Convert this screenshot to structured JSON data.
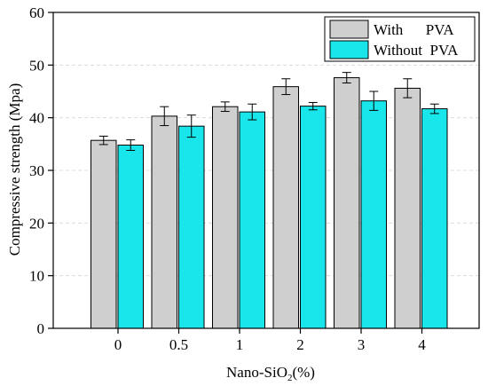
{
  "chart_data": {
    "type": "bar",
    "xlabel": "Nano-SiO",
    "xlabel_subscript": "2",
    "xlabel_suffix": "(%)",
    "ylabel": "Compressive strength (Mpa)",
    "ylim": [
      0,
      60
    ],
    "yticks": [
      0,
      10,
      20,
      30,
      40,
      50,
      60
    ],
    "categories": [
      "0",
      "0.5",
      "1",
      "2",
      "3",
      "4"
    ],
    "grid": true,
    "legend_position": "top-right",
    "series": [
      {
        "name": "With      PVA",
        "color": "#cfcfcf",
        "values": [
          35.7,
          40.3,
          42.1,
          45.9,
          47.6,
          45.6
        ],
        "errors": [
          0.8,
          1.8,
          0.9,
          1.5,
          1.0,
          1.8
        ]
      },
      {
        "name": "Without  PVA",
        "color": "#19e6ea",
        "values": [
          34.8,
          38.4,
          41.1,
          42.2,
          43.2,
          41.7
        ],
        "errors": [
          1.0,
          2.1,
          1.5,
          0.7,
          1.8,
          0.9
        ]
      }
    ]
  }
}
